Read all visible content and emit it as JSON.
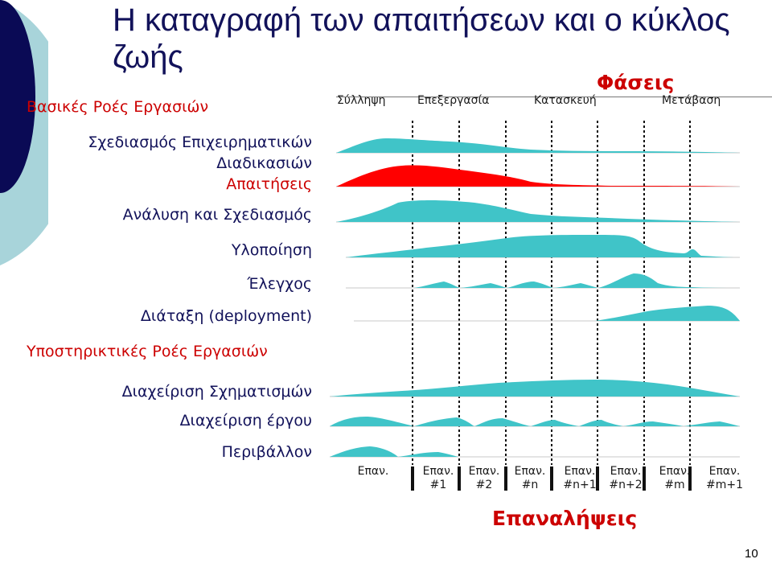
{
  "title": "Η καταγραφή των απαιτήσεων και ο κύκλος ζωής",
  "phases_title": "Φάσεις",
  "phases": [
    "Σύλληψη",
    "Επεξεργασία",
    "Κατασκευή",
    "Μετάβαση"
  ],
  "core_title": "Βασικές Ροές Εργασιών",
  "core_workflows": [
    "Σχεδιασμός Επιχειρηματικών",
    "Διαδικασιών",
    "Απαιτήσεις",
    "Ανάλυση και Σχεδιασμός",
    "Υλοποίηση",
    "Έλεγχος",
    "Διάταξη (deployment)"
  ],
  "support_title": "Υποστηρικτικές Ροές Εργασιών",
  "support_workflows": [
    "Διαχείριση Σχηματισμών",
    "Διαχείριση έργου",
    "Περιβάλλον"
  ],
  "iterations_title": "Επαναλήψεις",
  "iterations": [
    "Επαν.",
    "Επαν.\n#1",
    "Επαν.\n#2",
    "Επαν.\n#n",
    "Επαν.\n#n+1",
    "Επαν.\n#n+2",
    "Επαν.\n#m",
    "Επαν.\n#m+1"
  ],
  "colors": {
    "title": "#12125a",
    "accent": "#cc0000",
    "hump": "#40c4c8",
    "requirements_hump": "#ff0000"
  },
  "page_number": "10"
}
